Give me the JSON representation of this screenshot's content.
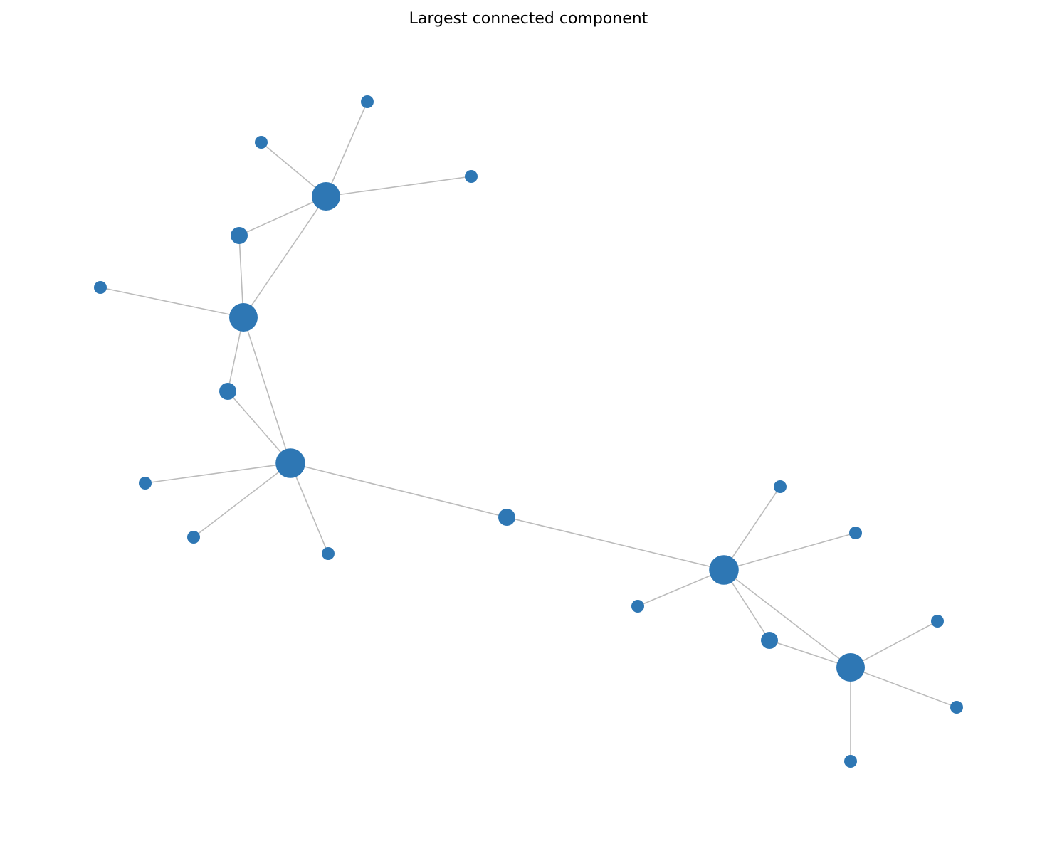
{
  "figure": {
    "title": "Largest connected component"
  },
  "graph": {
    "node_color": "#2e77b4",
    "edge_color": "#bbbbbb",
    "nodes": [
      {
        "id": "n1",
        "degree": 5
      },
      {
        "id": "n2",
        "degree": 1
      },
      {
        "id": "n3",
        "degree": 1
      },
      {
        "id": "n4",
        "degree": 1
      },
      {
        "id": "n5",
        "degree": 2
      },
      {
        "id": "n6",
        "degree": 5
      },
      {
        "id": "n7",
        "degree": 1
      },
      {
        "id": "n8",
        "degree": 2
      },
      {
        "id": "n9",
        "degree": 6
      },
      {
        "id": "n10",
        "degree": 1
      },
      {
        "id": "n11",
        "degree": 1
      },
      {
        "id": "n12",
        "degree": 1
      },
      {
        "id": "n13",
        "degree": 2
      },
      {
        "id": "n14",
        "degree": 6
      },
      {
        "id": "n15",
        "degree": 1
      },
      {
        "id": "n16",
        "degree": 1
      },
      {
        "id": "n17",
        "degree": 1
      },
      {
        "id": "n18",
        "degree": 2
      },
      {
        "id": "n19",
        "degree": 5
      },
      {
        "id": "n20",
        "degree": 1
      },
      {
        "id": "n21",
        "degree": 1
      },
      {
        "id": "n22",
        "degree": 1
      }
    ],
    "edges": [
      [
        "n1",
        "n2"
      ],
      [
        "n1",
        "n3"
      ],
      [
        "n1",
        "n4"
      ],
      [
        "n1",
        "n5"
      ],
      [
        "n1",
        "n6"
      ],
      [
        "n5",
        "n6"
      ],
      [
        "n6",
        "n7"
      ],
      [
        "n6",
        "n8"
      ],
      [
        "n6",
        "n9"
      ],
      [
        "n8",
        "n9"
      ],
      [
        "n9",
        "n10"
      ],
      [
        "n9",
        "n11"
      ],
      [
        "n9",
        "n12"
      ],
      [
        "n9",
        "n13"
      ],
      [
        "n13",
        "n14"
      ],
      [
        "n14",
        "n15"
      ],
      [
        "n14",
        "n16"
      ],
      [
        "n14",
        "n17"
      ],
      [
        "n14",
        "n18"
      ],
      [
        "n14",
        "n19"
      ],
      [
        "n18",
        "n19"
      ],
      [
        "n19",
        "n20"
      ],
      [
        "n19",
        "n21"
      ],
      [
        "n19",
        "n22"
      ]
    ]
  }
}
